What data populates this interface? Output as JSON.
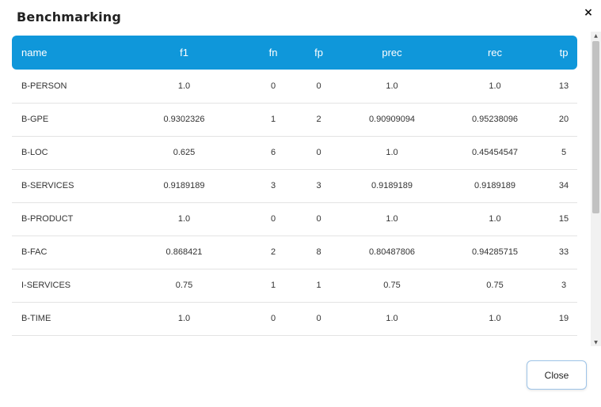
{
  "dialog": {
    "title": "Benchmarking",
    "close_icon": "×",
    "close_button_label": "Close"
  },
  "table": {
    "columns": [
      "name",
      "f1",
      "fn",
      "fp",
      "prec",
      "rec",
      "tp"
    ],
    "rows": [
      [
        "B-PERSON",
        "1.0",
        "0",
        "0",
        "1.0",
        "1.0",
        "13"
      ],
      [
        "B-GPE",
        "0.9302326",
        "1",
        "2",
        "0.90909094",
        "0.95238096",
        "20"
      ],
      [
        "B-LOC",
        "0.625",
        "6",
        "0",
        "1.0",
        "0.45454547",
        "5"
      ],
      [
        "B-SERVICES",
        "0.9189189",
        "3",
        "3",
        "0.9189189",
        "0.9189189",
        "34"
      ],
      [
        "B-PRODUCT",
        "1.0",
        "0",
        "0",
        "1.0",
        "1.0",
        "15"
      ],
      [
        "B-FAC",
        "0.868421",
        "2",
        "8",
        "0.80487806",
        "0.94285715",
        "33"
      ],
      [
        "I-SERVICES",
        "0.75",
        "1",
        "1",
        "0.75",
        "0.75",
        "3"
      ],
      [
        "B-TIME",
        "1.0",
        "0",
        "0",
        "1.0",
        "1.0",
        "19"
      ]
    ]
  },
  "icons": {
    "close": "close-icon",
    "scroll_up": "scroll-up-arrow-icon",
    "scroll_down": "scroll-down-arrow-icon"
  },
  "colors": {
    "header_bg": "#0f97da",
    "header_text": "#ffffff",
    "row_border": "#e3e3e3",
    "close_button_border": "#9ec4e8"
  }
}
